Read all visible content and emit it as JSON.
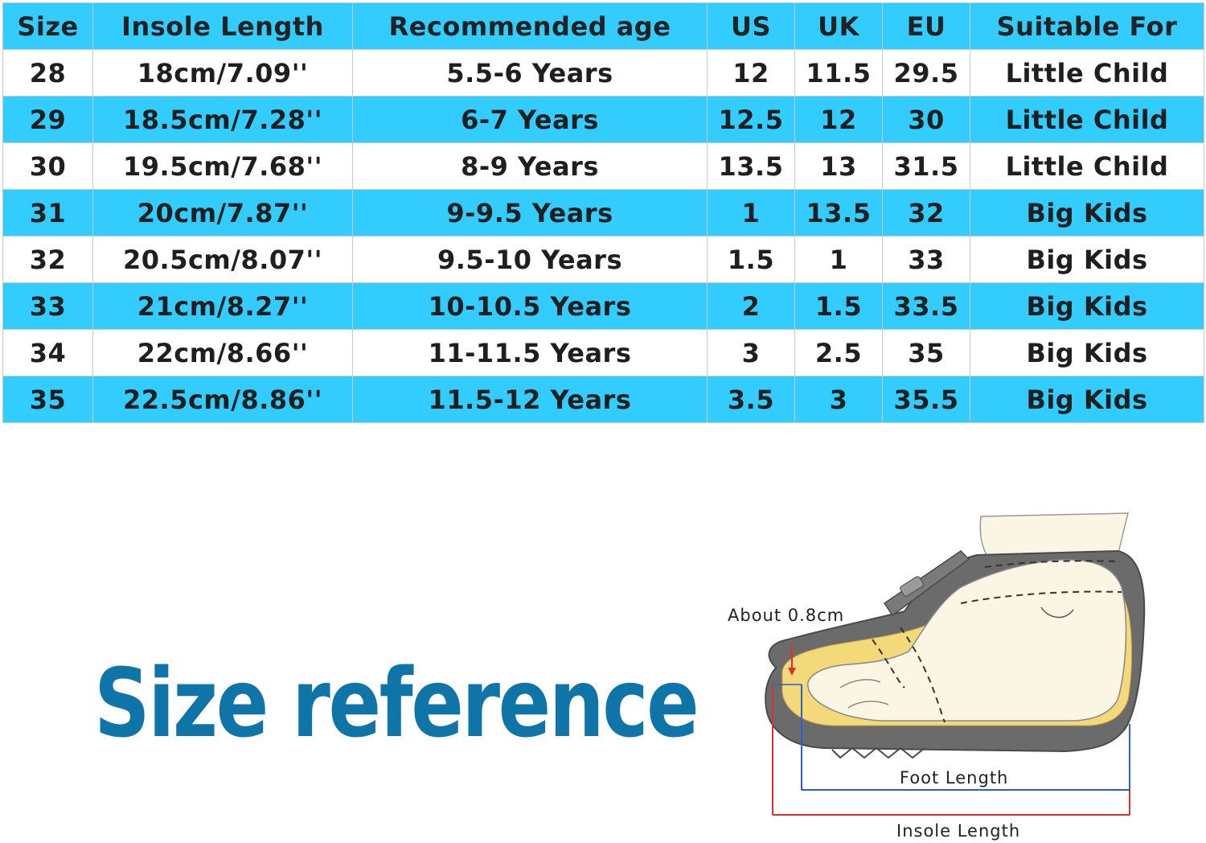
{
  "table": {
    "headers": [
      "Size",
      "Insole Length",
      "Recommended age",
      "US",
      "UK",
      "EU",
      "Suitable For"
    ],
    "rows": [
      [
        "28",
        "18cm/7.09''",
        "5.5-6 Years",
        "12",
        "11.5",
        "29.5",
        "Little Child"
      ],
      [
        "29",
        "18.5cm/7.28''",
        "6-7 Years",
        "12.5",
        "12",
        "30",
        "Little Child"
      ],
      [
        "30",
        "19.5cm/7.68''",
        "8-9 Years",
        "13.5",
        "13",
        "31.5",
        "Little Child"
      ],
      [
        "31",
        "20cm/7.87''",
        "9-9.5 Years",
        "1",
        "13.5",
        "32",
        "Big Kids"
      ],
      [
        "32",
        "20.5cm/8.07''",
        "9.5-10 Years",
        "1.5",
        "1",
        "33",
        "Big Kids"
      ],
      [
        "33",
        "21cm/8.27''",
        "10-10.5 Years",
        "2",
        "1.5",
        "33.5",
        "Big Kids"
      ],
      [
        "34",
        "22cm/8.66''",
        "11-11.5 Years",
        "3",
        "2.5",
        "35",
        "Big Kids"
      ],
      [
        "35",
        "22.5cm/8.86''",
        "11.5-12 Years",
        "3.5",
        "3",
        "35.5",
        "Big Kids"
      ]
    ]
  },
  "title": "Size reference",
  "diagram": {
    "toe_gap_label": "About 0.8cm",
    "foot_length_label": "Foot Length",
    "insole_length_label": "Insole Length"
  },
  "colors": {
    "header_band": "#33ccff",
    "title": "#0f74a8",
    "foot_length_line": "#2a5fc4",
    "insole_length_line": "#d93030"
  }
}
